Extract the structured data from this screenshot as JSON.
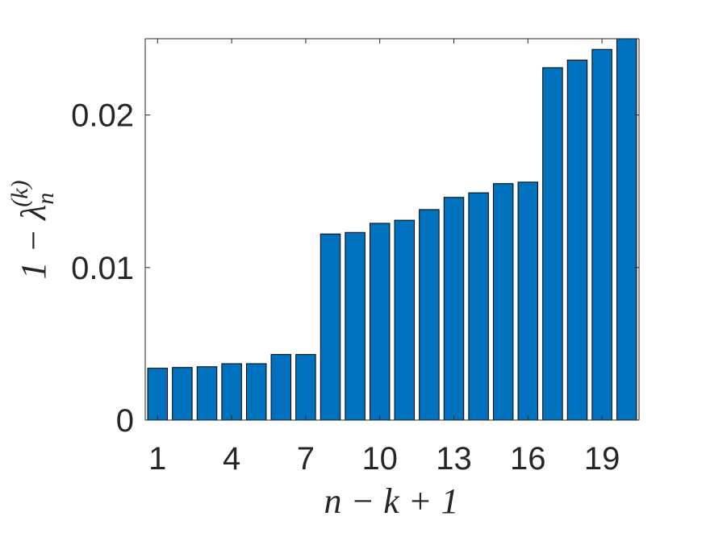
{
  "chart_data": {
    "type": "bar",
    "categories": [
      "1",
      "2",
      "3",
      "4",
      "5",
      "6",
      "7",
      "8",
      "9",
      "10",
      "11",
      "12",
      "13",
      "14",
      "15",
      "16",
      "17",
      "18",
      "19",
      "20"
    ],
    "values": [
      0.0034,
      0.00345,
      0.0035,
      0.0037,
      0.0037,
      0.0043,
      0.0043,
      0.0122,
      0.0123,
      0.0129,
      0.0131,
      0.0138,
      0.0146,
      0.0149,
      0.0155,
      0.0156,
      0.0231,
      0.0236,
      0.0243,
      0.025
    ],
    "title": "",
    "xlabel": "n − k + 1",
    "ylabel": "1 − λn(k)",
    "ylabel_parts": {
      "prefix": "1 − λ",
      "subscript": "n",
      "superscript": "(k)"
    },
    "ylim": [
      0,
      0.025
    ],
    "xticks": [
      "1",
      "4",
      "7",
      "10",
      "13",
      "16",
      "19"
    ],
    "yticks": [
      "0",
      "0.01",
      "0.02"
    ],
    "grid": false,
    "bar_color": "#0072BD",
    "bar_edge_color": "#000000",
    "axis_color": "#262626"
  }
}
